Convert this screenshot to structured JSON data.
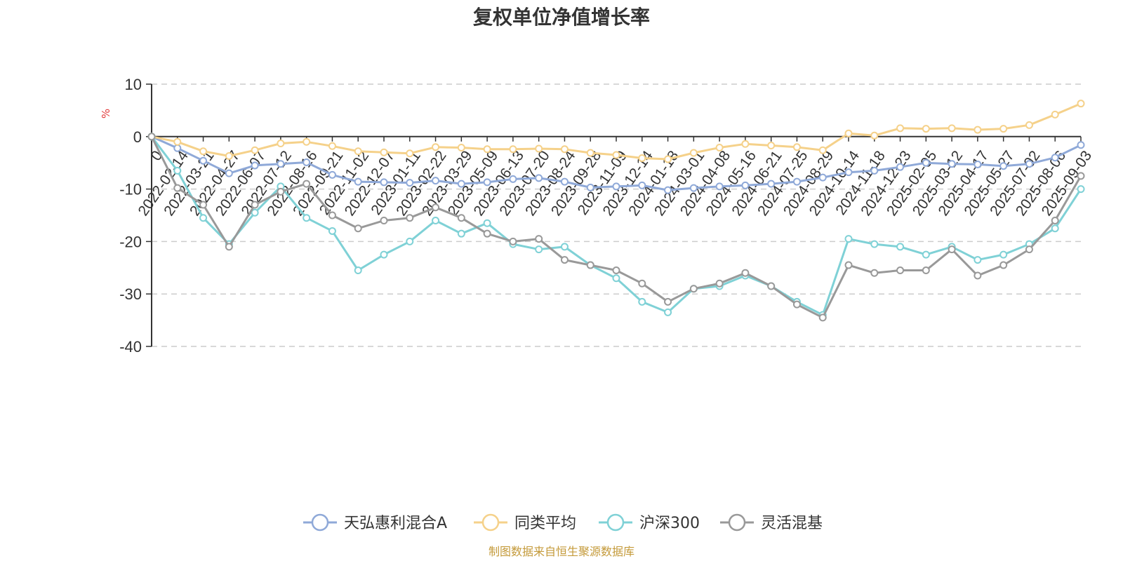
{
  "chart_data": {
    "type": "line",
    "title": "复权单位净值增长率",
    "ylabel": "%",
    "ylim": [
      -40,
      10
    ],
    "yticks": [
      10,
      0,
      -10,
      -20,
      -30,
      -40
    ],
    "grid": true,
    "legend_position": "bottom",
    "x_tick_labels": [
      "0",
      "2022-02-14",
      "2022-03-21",
      "2022-04-27",
      "2022-06-07",
      "2022-07-12",
      "2022-08-16",
      "2022-09-21",
      "2022-11-02",
      "2022-12-07",
      "2023-01-11",
      "2023-02-22",
      "2023-03-29",
      "2023-05-09",
      "2023-06-13",
      "2023-07-20",
      "2023-08-24",
      "2023-09-28",
      "2023-11-09",
      "2023-12-14",
      "2024-01-18",
      "2024-03-01",
      "2024-04-08",
      "2024-05-16",
      "2024-06-21",
      "2024-07-25",
      "2024-08-29",
      "2024-10-14",
      "2024-11-18",
      "2024-12-23",
      "2025-02-05",
      "2025-03-12",
      "2025-04-17",
      "2025-05-27",
      "2025-07-02",
      "2025-08-06",
      "2025-09-03"
    ],
    "series": [
      {
        "name": "天弘惠利混合A",
        "color": "#8fa9d8",
        "values": [
          0,
          -2.2,
          -4.6,
          -7.0,
          -5.5,
          -5.2,
          -4.9,
          -7.3,
          -8.6,
          -8.7,
          -8.8,
          -8.4,
          -9.0,
          -8.7,
          -8.1,
          -7.9,
          -8.6,
          -9.7,
          -9.5,
          -9.3,
          -10.2,
          -9.8,
          -9.5,
          -9.3,
          -9.0,
          -8.6,
          -7.8,
          -6.8,
          -6.5,
          -5.8,
          -5.0,
          -5.2,
          -5.3,
          -5.6,
          -5.2,
          -4.0,
          -1.6
        ]
      },
      {
        "name": "同类平均",
        "color": "#f5d18a",
        "values": [
          0,
          -1.0,
          -2.8,
          -3.7,
          -2.6,
          -1.3,
          -1.0,
          -1.8,
          -2.8,
          -3.0,
          -3.2,
          -2.0,
          -2.1,
          -2.4,
          -2.4,
          -2.3,
          -2.4,
          -3.1,
          -3.5,
          -4.1,
          -4.3,
          -3.1,
          -2.1,
          -1.4,
          -1.7,
          -2.0,
          -2.6,
          0.6,
          0.2,
          1.6,
          1.5,
          1.6,
          1.3,
          1.5,
          2.2,
          4.2,
          6.3
        ]
      },
      {
        "name": "沪深300",
        "color": "#7fd1d6",
        "values": [
          0,
          -6.5,
          -15.5,
          -20.5,
          -14.5,
          -9.5,
          -15.5,
          -18.0,
          -25.5,
          -22.5,
          -20.0,
          -16.0,
          -18.5,
          -16.5,
          -20.5,
          -21.5,
          -21.0,
          -24.5,
          -27.0,
          -31.5,
          -33.5,
          -29.0,
          -28.5,
          -26.5,
          -28.5,
          -31.5,
          -34.0,
          -19.5,
          -20.5,
          -21.0,
          -22.5,
          -21.0,
          -23.5,
          -22.5,
          -20.5,
          -17.5,
          -10.0
        ]
      },
      {
        "name": "灵活混基",
        "color": "#999999",
        "values": [
          0,
          -9.8,
          -13.0,
          -21.0,
          -13.0,
          -10.5,
          -9.0,
          -15.0,
          -17.5,
          -16.0,
          -15.5,
          -13.5,
          -15.5,
          -18.5,
          -20.0,
          -19.5,
          -23.5,
          -24.5,
          -25.5,
          -28.0,
          -31.5,
          -29.0,
          -28.0,
          -26.0,
          -28.5,
          -32.0,
          -34.5,
          -24.5,
          -26.0,
          -25.5,
          -25.5,
          -21.5,
          -26.5,
          -24.5,
          -21.5,
          -16.0,
          -7.5
        ]
      }
    ],
    "source_note": "制图数据来自恒生聚源数据库"
  }
}
